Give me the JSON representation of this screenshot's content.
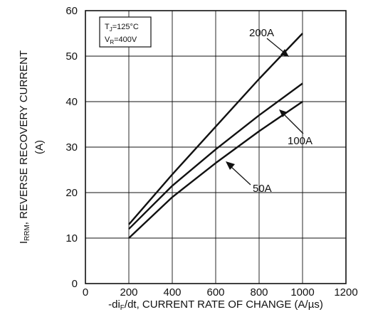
{
  "chart_data": {
    "type": "line",
    "xlabel": {
      "prefix": "-di",
      "sub": "F",
      "suffix": "/dt, CURRENT RATE OF CHANGE (A/µs)"
    },
    "ylabel": {
      "prefix": "I",
      "sub": "RRM",
      "line1": ", REVERSE RECOVERY CURRENT",
      "line2": "(A)"
    },
    "xlim": [
      0,
      1200
    ],
    "ylim": [
      0,
      60
    ],
    "xticks": [
      0,
      200,
      400,
      600,
      800,
      1000,
      1200
    ],
    "yticks": [
      0,
      10,
      20,
      30,
      40,
      50,
      60
    ],
    "grid": true,
    "conditions": {
      "tj_prefix": "T",
      "tj_sub": "J",
      "tj_value": "=125°C",
      "vr_prefix": "V",
      "vr_sub": "R",
      "vr_value": "=400V"
    },
    "series": [
      {
        "name": "200A",
        "x": [
          200,
          400,
          600,
          800,
          1000
        ],
        "y": [
          13,
          24,
          34.5,
          45,
          55
        ]
      },
      {
        "name": "100A",
        "x": [
          200,
          400,
          600,
          800,
          1000
        ],
        "y": [
          12,
          21.5,
          29.5,
          37,
          44
        ]
      },
      {
        "name": "50A",
        "x": [
          200,
          400,
          600,
          800,
          1000
        ],
        "y": [
          10,
          19,
          26.5,
          33.5,
          40
        ]
      }
    ]
  }
}
